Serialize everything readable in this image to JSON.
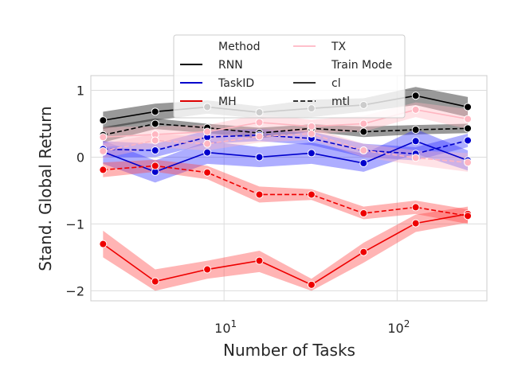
{
  "chart_data": {
    "type": "line",
    "xlabel": "Number of Tasks",
    "ylabel": "Stand. Global Return",
    "x_scale": "log",
    "xlim": [
      1.7,
      330
    ],
    "ylim": [
      -2.15,
      1.22
    ],
    "grid": true,
    "x": [
      2,
      4,
      8,
      16,
      32,
      64,
      128,
      256
    ],
    "x_tick_values": [
      10,
      100
    ],
    "x_tick_labels": [
      {
        "base": "10",
        "exp": "1"
      },
      {
        "base": "10",
        "exp": "2"
      }
    ],
    "y_ticks": [
      1,
      0,
      -1,
      -2
    ],
    "y_tick_labels": [
      "1",
      "0",
      "−1",
      "−2"
    ],
    "legend": {
      "placement": "top-center",
      "col1": [
        {
          "kind": "header",
          "text": "Method"
        },
        {
          "kind": "line",
          "text": "RNN",
          "color": "#000000",
          "dash": false
        },
        {
          "kind": "line",
          "text": "TaskID",
          "color": "#0000cc",
          "dash": false
        },
        {
          "kind": "line",
          "text": "MH",
          "color": "#dd0000",
          "dash": false
        }
      ],
      "col2": [
        {
          "kind": "line",
          "text": "TX",
          "color": "#ffc0cb",
          "dash": false
        },
        {
          "kind": "header",
          "text": "Train Mode"
        },
        {
          "kind": "line",
          "text": "cl",
          "color": "#333333",
          "dash": false
        },
        {
          "kind": "line",
          "text": "mtl",
          "color": "#333333",
          "dash": true
        }
      ]
    },
    "series": [
      {
        "method": "RNN",
        "mode": "cl",
        "color": "#000000",
        "fill": "#000000",
        "dash": false,
        "values": [
          0.55,
          0.68,
          0.75,
          0.67,
          0.73,
          0.78,
          0.92,
          0.75
        ],
        "lower": [
          0.42,
          0.55,
          0.65,
          0.58,
          0.6,
          0.68,
          0.78,
          0.6
        ],
        "upper": [
          0.68,
          0.8,
          0.85,
          0.76,
          0.86,
          0.88,
          1.05,
          0.9
        ]
      },
      {
        "method": "RNN",
        "mode": "mtl",
        "color": "#000000",
        "fill": "#000000",
        "dash": true,
        "values": [
          0.33,
          0.5,
          0.44,
          0.36,
          0.43,
          0.38,
          0.41,
          0.43
        ],
        "lower": [
          0.22,
          0.42,
          0.36,
          0.28,
          0.38,
          0.3,
          0.34,
          0.36
        ],
        "upper": [
          0.45,
          0.58,
          0.5,
          0.44,
          0.49,
          0.46,
          0.48,
          0.5
        ]
      },
      {
        "method": "TaskID",
        "mode": "cl",
        "color": "#0000cc",
        "fill": "#3333ff",
        "dash": false,
        "values": [
          0.08,
          -0.22,
          0.07,
          0.0,
          0.06,
          -0.09,
          0.24,
          -0.05
        ],
        "lower": [
          -0.1,
          -0.38,
          -0.1,
          -0.15,
          -0.1,
          -0.22,
          0.05,
          -0.2
        ],
        "upper": [
          0.25,
          -0.05,
          0.24,
          0.15,
          0.22,
          0.05,
          0.42,
          0.1
        ]
      },
      {
        "method": "TaskID",
        "mode": "mtl",
        "color": "#0000cc",
        "fill": "#3333ff",
        "dash": true,
        "values": [
          0.12,
          0.1,
          0.3,
          0.33,
          0.28,
          0.1,
          0.05,
          0.25
        ],
        "lower": [
          0.0,
          0.0,
          0.2,
          0.24,
          0.18,
          0.0,
          -0.05,
          0.15
        ],
        "upper": [
          0.24,
          0.2,
          0.4,
          0.42,
          0.38,
          0.2,
          0.15,
          0.35
        ]
      },
      {
        "method": "MH",
        "mode": "cl",
        "color": "#ee0000",
        "fill": "#ff4444",
        "dash": false,
        "values": [
          -1.3,
          -1.86,
          -1.68,
          -1.55,
          -1.91,
          -1.42,
          -0.99,
          -0.85
        ],
        "lower": [
          -1.5,
          -2.0,
          -1.82,
          -1.72,
          -2.0,
          -1.58,
          -1.12,
          -0.98
        ],
        "upper": [
          -1.1,
          -1.68,
          -1.55,
          -1.4,
          -1.82,
          -1.28,
          -0.86,
          -0.74
        ]
      },
      {
        "method": "MH",
        "mode": "mtl",
        "color": "#ee0000",
        "fill": "#ff4444",
        "dash": true,
        "values": [
          -0.19,
          -0.13,
          -0.23,
          -0.56,
          -0.56,
          -0.84,
          -0.75,
          -0.88
        ],
        "lower": [
          -0.3,
          -0.22,
          -0.33,
          -0.68,
          -0.64,
          -0.93,
          -0.85,
          -1.0
        ],
        "upper": [
          -0.08,
          -0.04,
          -0.13,
          -0.44,
          -0.48,
          -0.74,
          -0.65,
          -0.78
        ]
      },
      {
        "method": "TX",
        "mode": "cl",
        "color": "#ffb6c1",
        "fill": "#ffb6c1",
        "dash": false,
        "values": [
          0.3,
          0.34,
          0.38,
          0.52,
          0.46,
          0.5,
          0.71,
          0.57
        ],
        "lower": [
          0.15,
          0.22,
          0.28,
          0.4,
          0.36,
          0.38,
          0.6,
          0.42
        ],
        "upper": [
          0.45,
          0.46,
          0.48,
          0.64,
          0.56,
          0.62,
          0.82,
          0.72
        ]
      },
      {
        "method": "TX",
        "mode": "mtl",
        "color": "#ffb6c1",
        "fill": "#ffb6c1",
        "dash": true,
        "values": [
          0.09,
          0.25,
          0.2,
          0.31,
          0.35,
          0.1,
          -0.01,
          -0.08
        ],
        "lower": [
          -0.02,
          0.15,
          0.1,
          0.22,
          0.26,
          0.0,
          -0.12,
          -0.22
        ],
        "upper": [
          0.2,
          0.35,
          0.3,
          0.4,
          0.44,
          0.2,
          0.1,
          0.06
        ]
      }
    ]
  }
}
